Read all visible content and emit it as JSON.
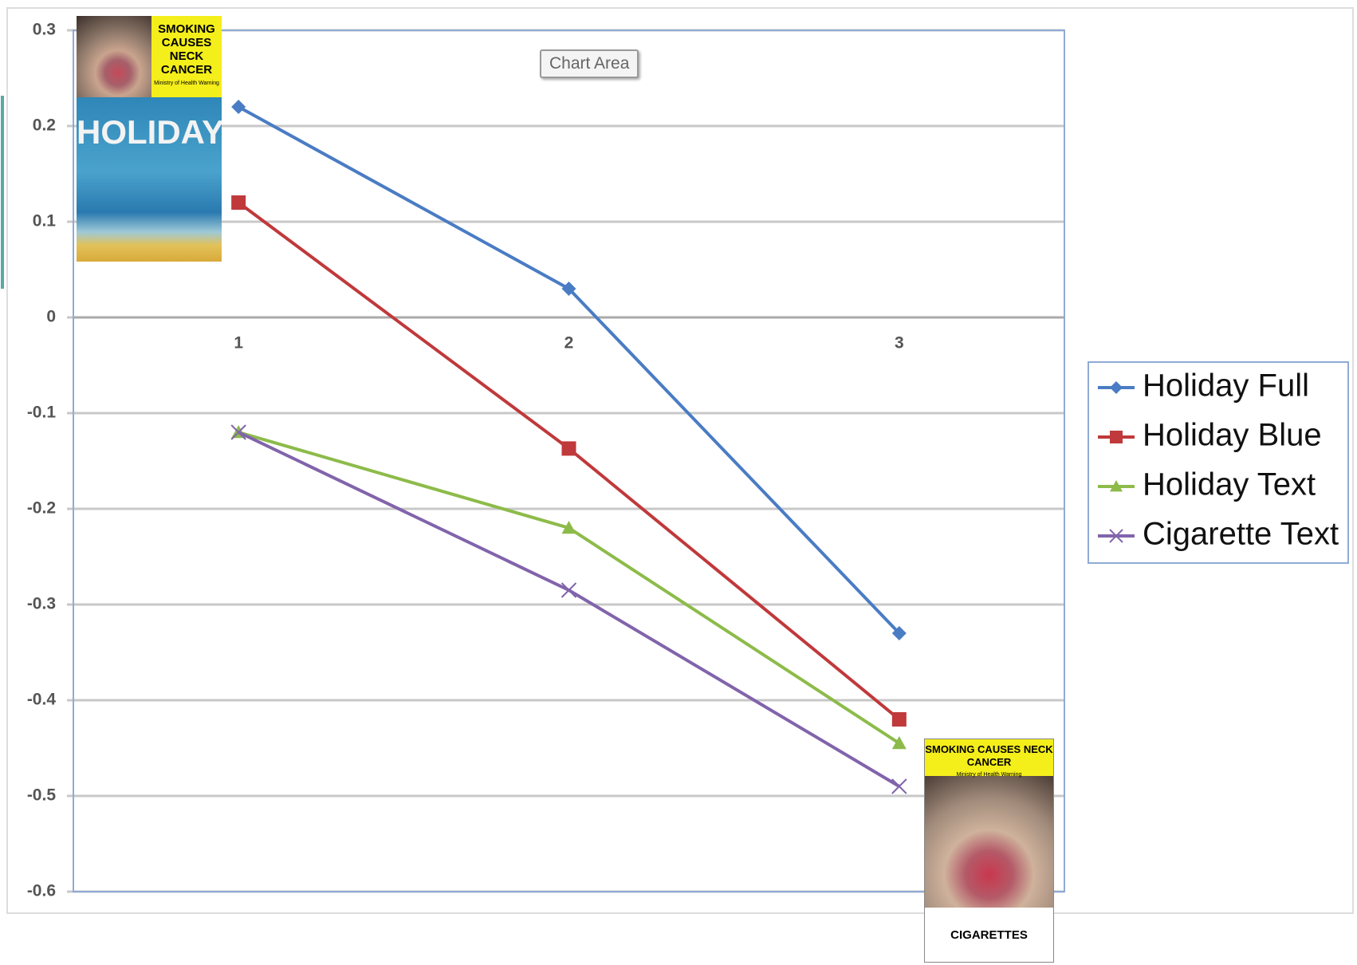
{
  "chart_data": {
    "type": "line",
    "categories": [
      "1",
      "2",
      "3"
    ],
    "series": [
      {
        "name": "Holiday Full",
        "color": "#4a7cc4",
        "marker": "diamond",
        "values": [
          0.22,
          0.03,
          -0.33
        ]
      },
      {
        "name": "Holiday Blue",
        "color": "#c0393b",
        "marker": "square",
        "values": [
          0.12,
          -0.137,
          -0.42
        ]
      },
      {
        "name": "Holiday Text",
        "color": "#8dbb4a",
        "marker": "triangle",
        "values": [
          -0.12,
          -0.22,
          -0.445
        ]
      },
      {
        "name": "Cigarette Text",
        "color": "#8164ab",
        "marker": "x",
        "values": [
          -0.12,
          -0.285,
          -0.49
        ]
      }
    ],
    "ylim": [
      -0.6,
      0.3
    ],
    "yticks": [
      -0.6,
      -0.5,
      -0.4,
      -0.3,
      -0.2,
      -0.1,
      0,
      0.1,
      0.2,
      0.3
    ],
    "grid": true,
    "legend": "right",
    "annotations": {
      "tooltip": "Chart Area",
      "pack1_warning": "SMOKING CAUSES NECK CANCER",
      "pack1_source": "Ministry of Health Warning",
      "pack1_brand": "HOLIDAY",
      "pack2_warning": "SMOKING CAUSES NECK CANCER",
      "pack2_source": "Ministry of Health Warning",
      "pack2_brand": "CIGARETTES"
    }
  }
}
